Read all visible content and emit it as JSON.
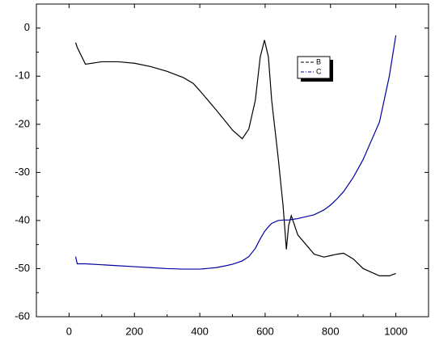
{
  "chart_data": {
    "type": "line",
    "x": [
      20,
      25,
      50,
      100,
      150,
      200,
      250,
      300,
      350,
      380,
      400,
      450,
      480,
      500,
      530,
      550,
      570,
      585,
      598,
      610,
      620,
      640,
      655,
      665,
      672,
      680,
      700,
      750,
      780,
      800,
      820,
      840,
      870,
      900,
      950,
      980,
      1000
    ],
    "series": [
      {
        "name": "B",
        "color": "#000000",
        "values": [
          -3,
          -4,
          -7.5,
          -7,
          -7,
          -7.3,
          -8,
          -9,
          -10.3,
          -11.5,
          -13,
          -17,
          -19.5,
          -21.2,
          -23,
          -21,
          -15,
          -6,
          -2.5,
          -6,
          -15,
          -27,
          -37,
          -46,
          -41,
          -39,
          -43,
          -47,
          -47.6,
          -47.3,
          -47,
          -46.8,
          -48,
          -50,
          -51.5,
          -51.5,
          -51
        ]
      },
      {
        "name": "C",
        "color": "#0000a0",
        "values": [
          -47.5,
          -49,
          -49,
          -49.2,
          -49.4,
          -49.6,
          -49.8,
          -50,
          -50.1,
          -50.1,
          -50.1,
          -49.8,
          -49.4,
          -49.1,
          -48.4,
          -47.5,
          -45.8,
          -43.8,
          -42.3,
          -41.3,
          -40.6,
          -40,
          -39.9,
          -39.9,
          -39.9,
          -39.8,
          -39.6,
          -38.8,
          -37.8,
          -36.8,
          -35.5,
          -34,
          -31,
          -27.3,
          -19.5,
          -10,
          -1.5
        ]
      }
    ],
    "xlim": [
      -100,
      1100
    ],
    "ylim": [
      -60,
      5
    ],
    "xticks": [
      0,
      200,
      400,
      600,
      800,
      1000
    ],
    "yticks": [
      0,
      -10,
      -20,
      -30,
      -40,
      -50,
      -60
    ]
  }
}
